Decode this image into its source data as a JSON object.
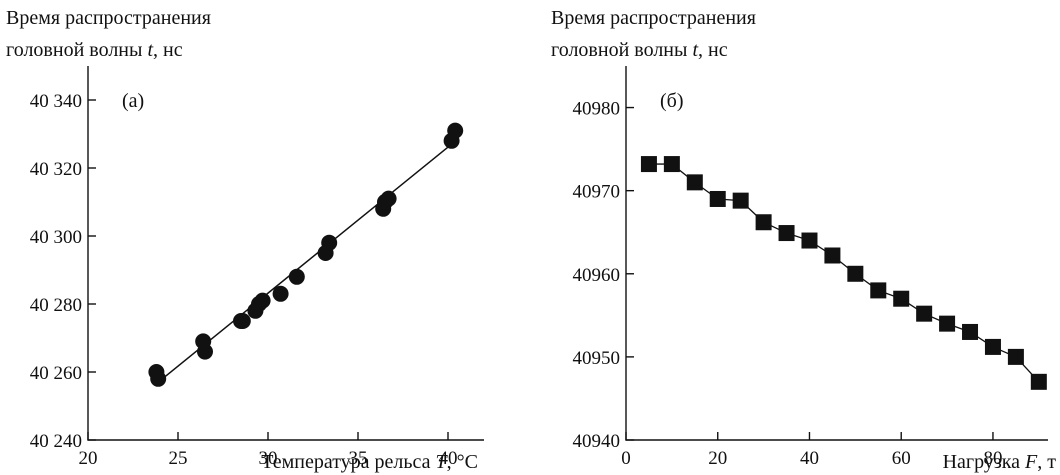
{
  "chart_data": [
    {
      "type": "scatter",
      "panel_label": "(а)",
      "ylabel": [
        "Время распространения",
        "головной волны t, нс"
      ],
      "xlabel": "Температура рельса T, °C",
      "xlim": [
        20,
        42
      ],
      "ylim": [
        40240,
        40350
      ],
      "xticks": [
        20,
        25,
        30,
        35,
        40
      ],
      "yticks": [
        40240,
        40260,
        40280,
        40300,
        40320,
        40340
      ],
      "xtick_labels": [
        "20",
        "25",
        "30",
        "35",
        "40"
      ],
      "ytick_labels": [
        "40 240",
        "40 260",
        "40 280",
        "40 300",
        "40 320",
        "40 340"
      ],
      "marker": "circle",
      "x": [
        23.8,
        23.9,
        26.4,
        26.5,
        28.5,
        28.6,
        29.3,
        29.5,
        29.7,
        30.7,
        31.6,
        33.2,
        33.4,
        36.4,
        36.5,
        36.7,
        40.2,
        40.4
      ],
      "y": [
        40260,
        40258,
        40269,
        40266,
        40275,
        40275,
        40278,
        40280,
        40281,
        40283,
        40288,
        40295,
        40298,
        40308,
        40310,
        40311,
        40328,
        40331
      ],
      "fit_line": {
        "x": [
          23.9,
          40.2
        ],
        "y": [
          40257,
          40327
        ]
      }
    },
    {
      "type": "line",
      "panel_label": "(б)",
      "ylabel": [
        "Время распространения",
        "головной волны t, нс"
      ],
      "xlabel": "Нагрузка F, т",
      "xlim": [
        0,
        92
      ],
      "ylim": [
        40940,
        40985
      ],
      "xticks": [
        0,
        20,
        40,
        60,
        80
      ],
      "yticks": [
        40940,
        40950,
        40960,
        40970,
        40980
      ],
      "xtick_labels": [
        "0",
        "20",
        "40",
        "60",
        "80"
      ],
      "ytick_labels": [
        "40940",
        "40950",
        "40960",
        "40970",
        "40980"
      ],
      "marker": "square",
      "x": [
        5,
        10,
        15,
        20,
        25,
        30,
        35,
        40,
        45,
        50,
        55,
        60,
        65,
        70,
        75,
        80,
        85,
        90
      ],
      "y": [
        40973.2,
        40973.2,
        40971,
        40969,
        40968.8,
        40966.2,
        40964.9,
        40964,
        40962.2,
        40960,
        40958,
        40957,
        40955.2,
        40954,
        40953,
        40951.2,
        40950,
        40947
      ]
    }
  ]
}
